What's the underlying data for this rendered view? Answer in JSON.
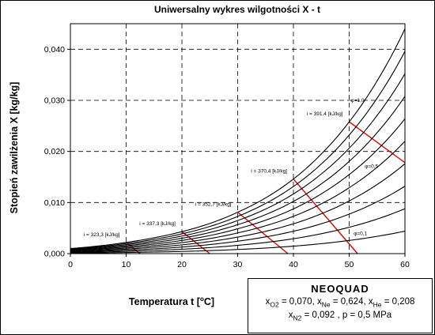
{
  "chart_data": {
    "type": "line",
    "title": "Uniwersalny wykres wilgotności X - t",
    "xlabel_main": "Temperatura t [",
    "xlabel_sup": "o",
    "xlabel_unit": "C]",
    "ylabel": "Stopień zawilżenia X [kg/kg]",
    "xlim": [
      0,
      60
    ],
    "ylim": [
      0,
      0.045
    ],
    "x_ticks": [
      0,
      10,
      20,
      30,
      40,
      50,
      60
    ],
    "x_tick_labels": [
      "0",
      "10",
      "20",
      "30",
      "40",
      "50",
      "60"
    ],
    "y_ticks": [
      0,
      0.01,
      0.02,
      0.03,
      0.04
    ],
    "y_tick_labels": [
      "0,000",
      "0,010",
      "0,020",
      "0,030",
      "0,040"
    ],
    "grid": "dashed",
    "saturation_curve": {
      "x": [
        0,
        5,
        10,
        15,
        20,
        25,
        30,
        35,
        40,
        45,
        50,
        55,
        60
      ],
      "y": [
        0.001,
        0.0015,
        0.0022,
        0.0031,
        0.0043,
        0.0059,
        0.0081,
        0.0109,
        0.0146,
        0.0195,
        0.0258,
        0.0338,
        0.044
      ]
    },
    "phi_values": [
      1.0,
      0.9,
      0.8,
      0.7,
      0.6,
      0.5,
      0.4,
      0.3,
      0.2,
      0.1
    ],
    "enthalpy_lines": [
      {
        "label": "i = 323,3 [kJ/kg]",
        "from": [
          10,
          0.0022
        ],
        "to": [
          12.5,
          0
        ]
      },
      {
        "label": "i = 337,3 [kJ/kg]",
        "from": [
          20,
          0.0043
        ],
        "to": [
          25,
          0
        ]
      },
      {
        "label": "i = 352,7 [kJ/kg]",
        "from": [
          30,
          0.0081
        ],
        "to": [
          39,
          0
        ]
      },
      {
        "label": "i = 370,4 [kJ/kg]",
        "from": [
          40,
          0.0146
        ],
        "to": [
          51.5,
          0
        ]
      },
      {
        "label": "i = 391,4 [kJ/kg]",
        "from": [
          50,
          0.0258
        ],
        "to": [
          60,
          0.0178
        ]
      }
    ],
    "annotations": [
      {
        "text": "φ=1,0",
        "x": 51.5,
        "y": 0.0297
      },
      {
        "text": "φ=0,5",
        "x": 54,
        "y": 0.0168
      },
      {
        "text": "φ=0,1",
        "x": 52,
        "y": 0.0036
      }
    ],
    "colors": {
      "curves": "#000000",
      "enthalpy": "#e00000",
      "grid": "#000000"
    }
  },
  "info_box": {
    "title": "NEOQUAD",
    "line1": [
      {
        "sub": "O2",
        "val": " = 0,070, "
      },
      {
        "sub": "Ne",
        "val": " = 0,624, "
      },
      {
        "sub": "He",
        "val": " = 0,208"
      }
    ],
    "line2": [
      {
        "sub": "N2",
        "val": " = 0,092 , "
      },
      {
        "val": "p = 0,5 MPa"
      }
    ]
  }
}
